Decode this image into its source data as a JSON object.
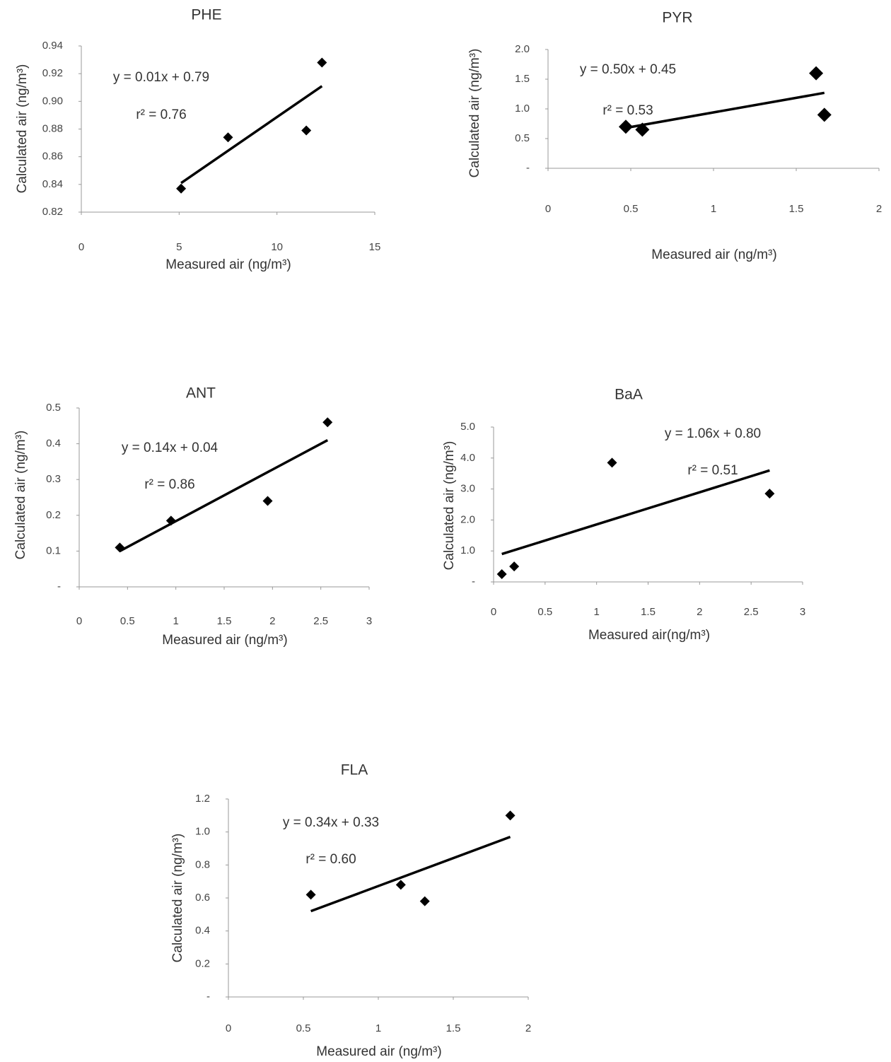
{
  "chart_data": [
    {
      "type": "scatter",
      "title": "PHE",
      "equation": "y = 0.01x + 0.79",
      "r_squared": "r² = 0.76",
      "xlabel": "Measured air (ng/m³)",
      "ylabel": "Calculated air (ng/m³)",
      "color": "#000000",
      "x": [
        5.1,
        7.5,
        11.5,
        12.3
      ],
      "y": [
        0.837,
        0.874,
        0.879,
        0.928
      ],
      "trendline": {
        "x": [
          5.1,
          12.3
        ],
        "y": [
          0.841,
          0.911
        ]
      },
      "xlim": [
        0,
        15
      ],
      "ylim": [
        0.82,
        0.94
      ],
      "xticks": [
        0,
        5,
        10,
        15
      ],
      "yticks": [
        {
          "value": 0.82,
          "label": "0.82"
        },
        {
          "value": 0.84,
          "label": "0.84"
        },
        {
          "value": 0.86,
          "label": "0.86"
        },
        {
          "value": 0.88,
          "label": "0.88"
        },
        {
          "value": 0.9,
          "label": "0.90"
        },
        {
          "value": 0.92,
          "label": "0.92"
        },
        {
          "value": 0.94,
          "label": "0.94"
        }
      ]
    },
    {
      "type": "scatter",
      "title": "PYR",
      "equation": "y = 0.50x + 0.45",
      "r_squared": "r² = 0.53",
      "xlabel": "Measured air (ng/m³)",
      "ylabel": "Calculated air (ng/m³)",
      "color": "#000000",
      "x": [
        0.47,
        0.57,
        1.62,
        1.67
      ],
      "y": [
        0.7,
        0.65,
        1.6,
        0.9
      ],
      "trendline": {
        "x": [
          0.47,
          1.67
        ],
        "y": [
          0.68,
          1.27
        ]
      },
      "xlim": [
        0,
        2
      ],
      "ylim": [
        0,
        2
      ],
      "xticks": [
        0,
        0.5,
        1,
        1.5,
        2
      ],
      "yticks": [
        {
          "value": 0,
          "label": "-"
        },
        0.5,
        {
          "value": 1,
          "label": "1.0"
        },
        1.5,
        {
          "value": 2,
          "label": "2.0"
        }
      ]
    },
    {
      "type": "scatter",
      "title": "ANT",
      "equation": "y = 0.14x + 0.04",
      "r_squared": "r² = 0.86",
      "xlabel": "Measured air (ng/m³)",
      "ylabel": "Calculated air (ng/m³)",
      "color": "#000000",
      "x": [
        0.42,
        0.95,
        1.95,
        2.57
      ],
      "y": [
        0.11,
        0.185,
        0.24,
        0.46
      ],
      "trendline": {
        "x": [
          0.42,
          2.57
        ],
        "y": [
          0.1,
          0.41
        ]
      },
      "xlim": [
        0,
        3
      ],
      "ylim": [
        0,
        0.5
      ],
      "xticks": [
        0,
        0.5,
        1,
        1.5,
        2,
        2.5,
        3
      ],
      "yticks": [
        {
          "value": 0,
          "label": "-"
        },
        0.1,
        0.2,
        0.3,
        0.4,
        0.5
      ]
    },
    {
      "type": "scatter",
      "title": "BaA",
      "equation": "y = 1.06x + 0.80",
      "r_squared": "r² = 0.51",
      "xlabel": "Measured air(ng/m³)",
      "ylabel": "Calculated air (ng/m³)",
      "color": "#000000",
      "x": [
        0.08,
        0.2,
        1.15,
        2.68
      ],
      "y": [
        0.25,
        0.5,
        3.85,
        2.85
      ],
      "trendline": {
        "x": [
          0.08,
          2.68
        ],
        "y": [
          0.9,
          3.6
        ]
      },
      "xlim": [
        0,
        3
      ],
      "ylim": [
        0,
        5
      ],
      "xticks": [
        0,
        0.5,
        1,
        1.5,
        2,
        2.5,
        3
      ],
      "yticks": [
        {
          "value": 0,
          "label": "-"
        },
        {
          "value": 1,
          "label": "1.0"
        },
        {
          "value": 2,
          "label": "2.0"
        },
        {
          "value": 3,
          "label": "3.0"
        },
        {
          "value": 4,
          "label": "4.0"
        },
        {
          "value": 5,
          "label": "5.0"
        }
      ]
    },
    {
      "type": "scatter",
      "title": "FLA",
      "equation": "y = 0.34x + 0.33",
      "r_squared": "r² = 0.60",
      "xlabel": "Measured air (ng/m³)",
      "ylabel": "Calculated air (ng/m³)",
      "color": "#000000",
      "x": [
        0.55,
        1.15,
        1.31,
        1.88
      ],
      "y": [
        0.62,
        0.68,
        0.58,
        1.1
      ],
      "trendline": {
        "x": [
          0.55,
          1.88
        ],
        "y": [
          0.52,
          0.97
        ]
      },
      "xlim": [
        0,
        2
      ],
      "ylim": [
        0,
        1.2
      ],
      "xticks": [
        0,
        0.5,
        1,
        1.5,
        2
      ],
      "yticks": [
        {
          "value": 0,
          "label": "-"
        },
        0.2,
        0.4,
        0.6,
        0.8,
        {
          "value": 1,
          "label": "1.0"
        },
        1.2
      ]
    }
  ]
}
